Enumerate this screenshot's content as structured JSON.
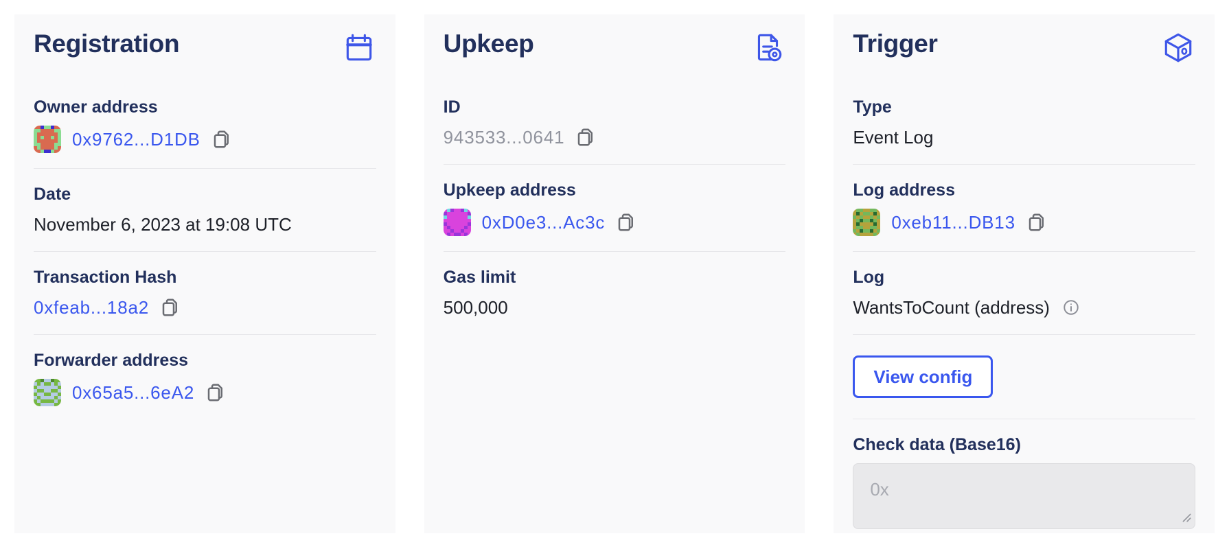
{
  "theme": {
    "page_bg": "#ffffff",
    "card_bg": "#f9f9fa",
    "heading_color": "#22305c",
    "link_color": "#3a57ee",
    "text_color": "#1d2028",
    "muted_color": "#90939d",
    "divider_color": "#e7e7ea",
    "header_icon_color": "#3e56e8",
    "copy_icon_color": "#6a6c72"
  },
  "cards": [
    {
      "title": "Registration",
      "icon": "calendar-icon",
      "rows": [
        {
          "label": "Owner address",
          "value": "0x9762...D1DB",
          "has_copy": true,
          "identicon": {
            "palette": [
              "#8bdc92",
              "#d96a50",
              "#3c2fd0"
            ],
            "rows": [
              "11200211",
              "00111100",
              "01111110",
              "01011010",
              "01111110",
              "00111100",
              "10111101",
              "11022011"
            ]
          }
        },
        {
          "label": "Date",
          "value": "November 6, 2023 at 19:08 UTC"
        },
        {
          "label": "Transaction Hash",
          "value": "0xfeab...18a2",
          "has_copy": true
        },
        {
          "label": "Forwarder address",
          "value": "0x65a5...6eA2",
          "has_copy": true,
          "identicon": {
            "palette": [
              "#b5cbe3",
              "#77b843",
              "#4e8a2e"
            ],
            "rows": [
              "11200211",
              "01011010",
              "10000001",
              "01100110",
              "10011001",
              "01000010",
              "10111101",
              "11000011"
            ]
          }
        }
      ]
    },
    {
      "title": "Upkeep",
      "icon": "document-gear-icon",
      "rows": [
        {
          "label": "ID",
          "value": "943533...0641",
          "has_copy": true
        },
        {
          "label": "Upkeep address",
          "value": "0xD0e3...Ac3c",
          "has_copy": true,
          "identicon": {
            "palette": [
              "#d943dd",
              "#9a35d9",
              "#70d8e4"
            ],
            "rows": [
              "02100120",
              "10000001",
              "20000002",
              "00000000",
              "10000001",
              "01000010",
              "00100100",
              "01011010"
            ]
          }
        },
        {
          "label": "Gas limit",
          "value": "500,000"
        }
      ]
    },
    {
      "title": "Trigger",
      "icon": "cube-icon",
      "rows": [
        {
          "label": "Type",
          "value": "Event Log"
        },
        {
          "label": "Log address",
          "value": "0xeb11...DB13",
          "has_copy": true,
          "identicon": {
            "palette": [
              "#b5a33c",
              "#74b85c",
              "#276b31"
            ],
            "rows": [
              "01100110",
              "02011020",
              "10100101",
              "01211210",
              "02000020",
              "01100110",
              "10211201",
              "01000010"
            ]
          }
        },
        {
          "label": "Log",
          "value": "WantsToCount (address)",
          "has_info": true
        },
        {
          "button_label": "View config"
        },
        {
          "label": "Check data (Base16)",
          "placeholder": "0x"
        }
      ]
    }
  ]
}
